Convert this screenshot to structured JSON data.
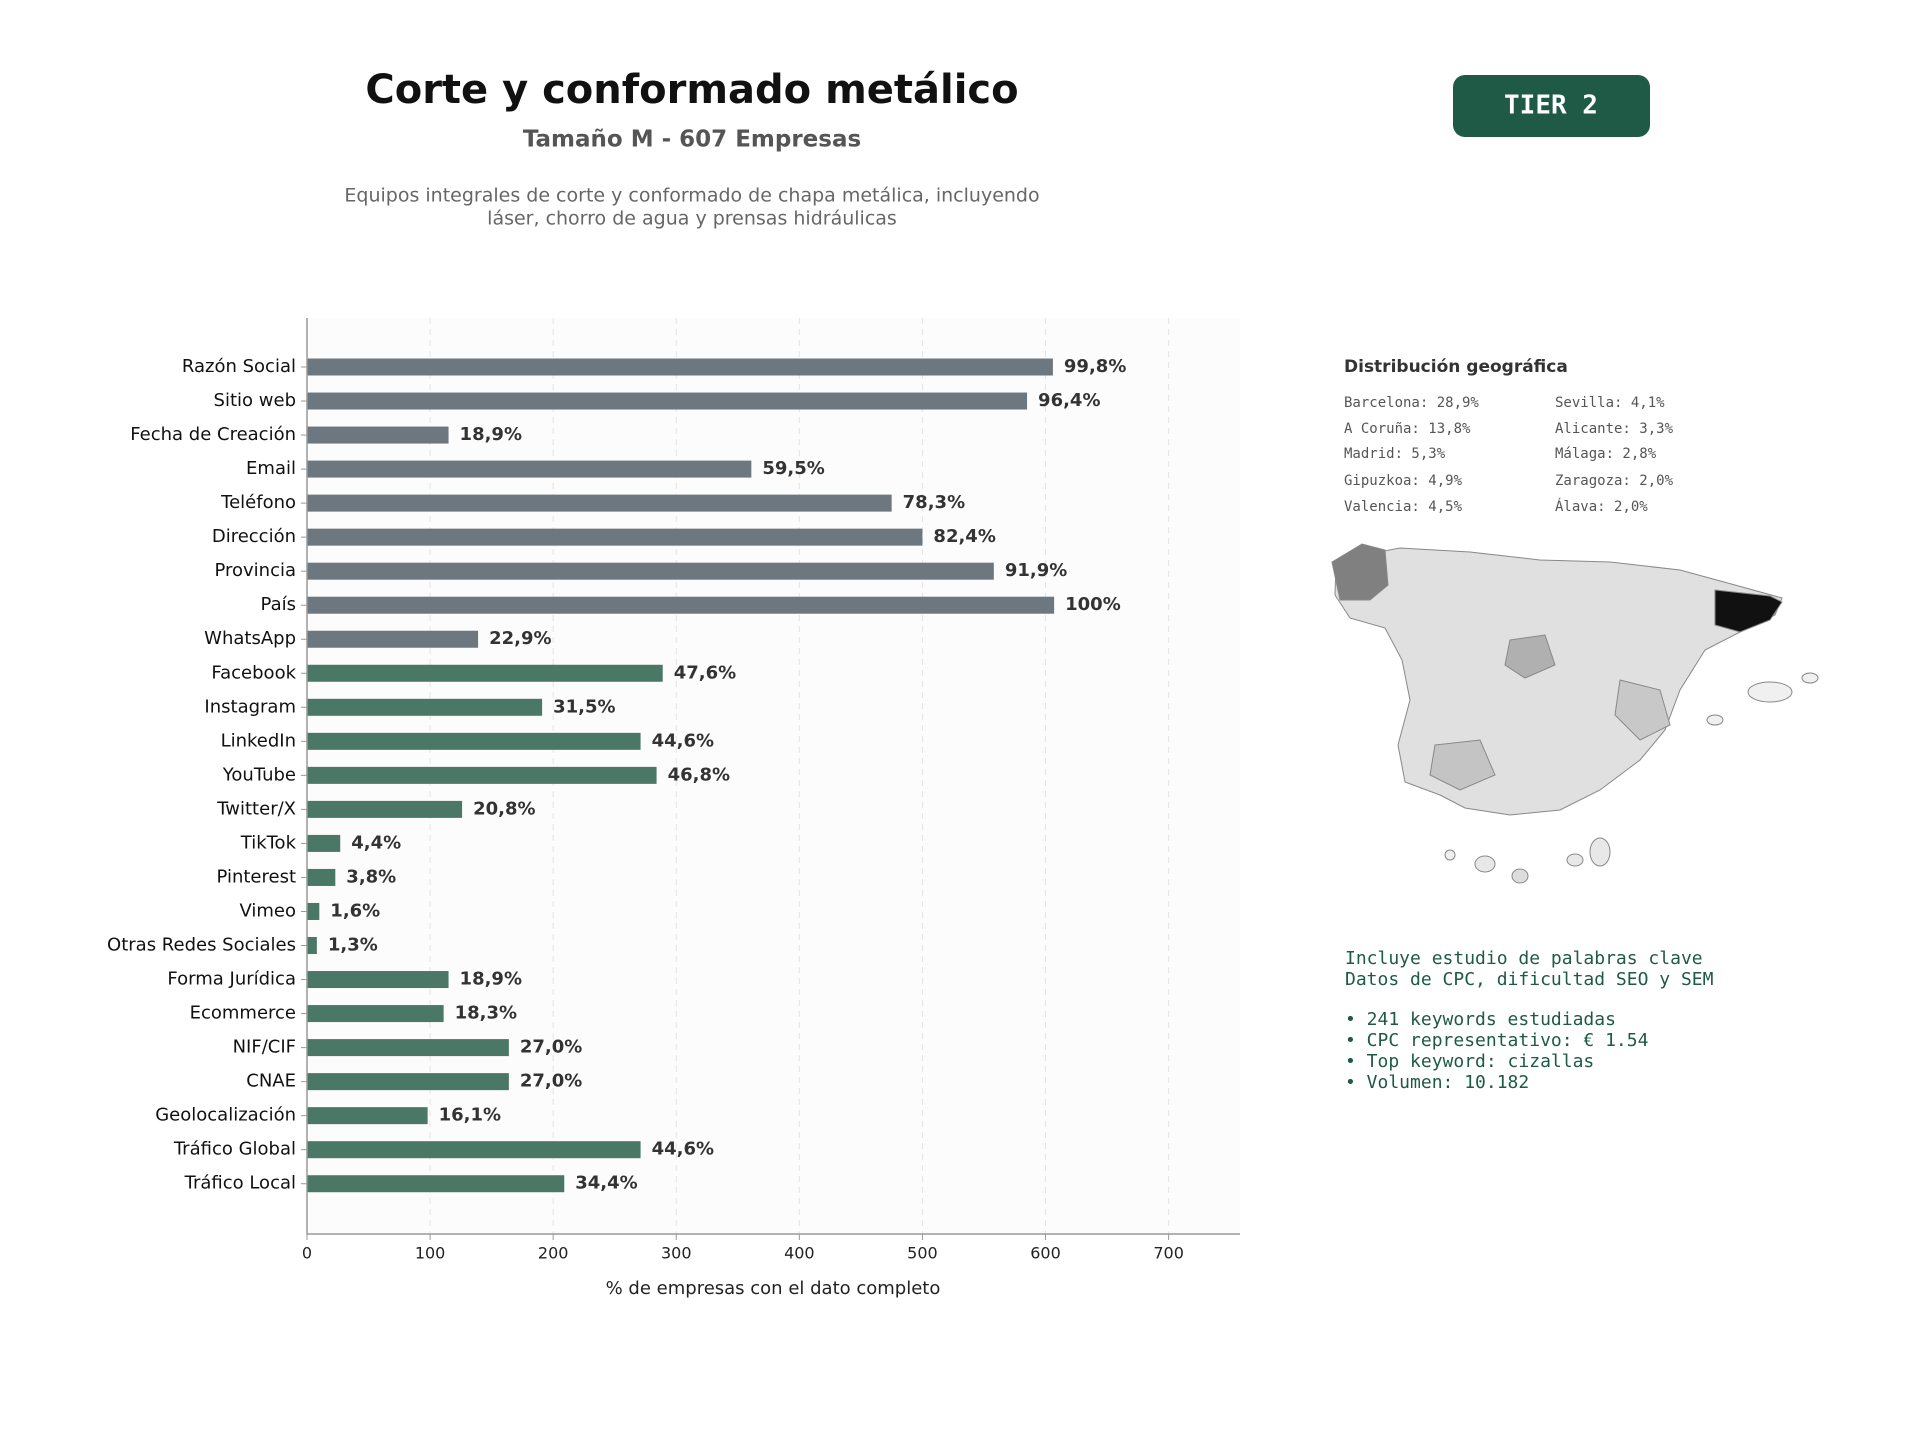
{
  "chart_data": {
    "type": "bar",
    "orientation": "horizontal",
    "title": "Corte y conformado metálico",
    "subtitle": "Tamaño M - 607 Empresas",
    "description": [
      "Equipos integrales de corte y conformado de chapa metálica, incluyendo",
      "láser, chorro de agua y prensas hidráulicas"
    ],
    "badge": "TIER 2",
    "x_label": "% de empresas con el dato completo",
    "categories": [
      "Razón Social",
      "Sitio web",
      "Fecha de Creación",
      "Email",
      "Teléfono",
      "Dirección",
      "Provincia",
      "País",
      "WhatsApp",
      "Facebook",
      "Instagram",
      "LinkedIn",
      "YouTube",
      "Twitter/X",
      "TikTok",
      "Pinterest",
      "Vimeo",
      "Otras Redes Sociales",
      "Forma Jurídica",
      "Ecommerce",
      "NIF/CIF",
      "CNAE",
      "Geolocalización",
      "Tráfico Global",
      "Tráfico Local"
    ],
    "values": [
      606,
      585,
      115,
      361,
      475,
      500,
      558,
      607,
      139,
      289,
      191,
      271,
      284,
      126,
      27,
      23,
      10,
      8,
      115,
      111,
      164,
      164,
      98,
      271,
      209
    ],
    "value_labels": [
      "99,8%",
      "96,4%",
      "18,9%",
      "59,5%",
      "78,3%",
      "82,4%",
      "91,9%",
      "100%",
      "22,9%",
      "47,6%",
      "31,5%",
      "44,6%",
      "46,8%",
      "20,8%",
      "4,4%",
      "3,8%",
      "1,6%",
      "1,3%",
      "18,9%",
      "18,3%",
      "27,0%",
      "27,0%",
      "16,1%",
      "44,6%",
      "34,4%"
    ],
    "colors": [
      "#6c7780",
      "#6c7780",
      "#6c7780",
      "#6c7780",
      "#6c7780",
      "#6c7780",
      "#6c7780",
      "#6c7780",
      "#6c7780",
      "#4a7766",
      "#4a7766",
      "#4a7766",
      "#4a7766",
      "#4a7766",
      "#4a7766",
      "#4a7766",
      "#4a7766",
      "#4a7766",
      "#4a7766",
      "#4a7766",
      "#4a7766",
      "#4a7766",
      "#4a7766",
      "#4a7766",
      "#4a7766"
    ],
    "xlim": [
      0,
      758
    ],
    "xticks": [
      0,
      100,
      200,
      300,
      400,
      500,
      600,
      700
    ],
    "grid": true,
    "geo": {
      "title": "Distribución geográfica",
      "left": [
        "Barcelona: 28,9%",
        "A Coruña: 13,8%",
        "Madrid: 5,3%",
        "Gipuzkoa: 4,9%",
        "Valencia: 4,5%"
      ],
      "right": [
        "Sevilla: 4,1%",
        "Alicante: 3,3%",
        "Málaga: 2,8%",
        "Zaragoza: 2,0%",
        "Álava: 2,0%"
      ]
    },
    "keywords": {
      "intro": [
        "Incluye estudio de palabras clave",
        "Datos de CPC, dificultad SEO y SEM"
      ],
      "bullets": [
        "• 241 keywords estudiadas",
        "• CPC representativo: € 1.54",
        "• Top keyword: cizallas",
        "• Volumen: 10.182"
      ]
    }
  }
}
